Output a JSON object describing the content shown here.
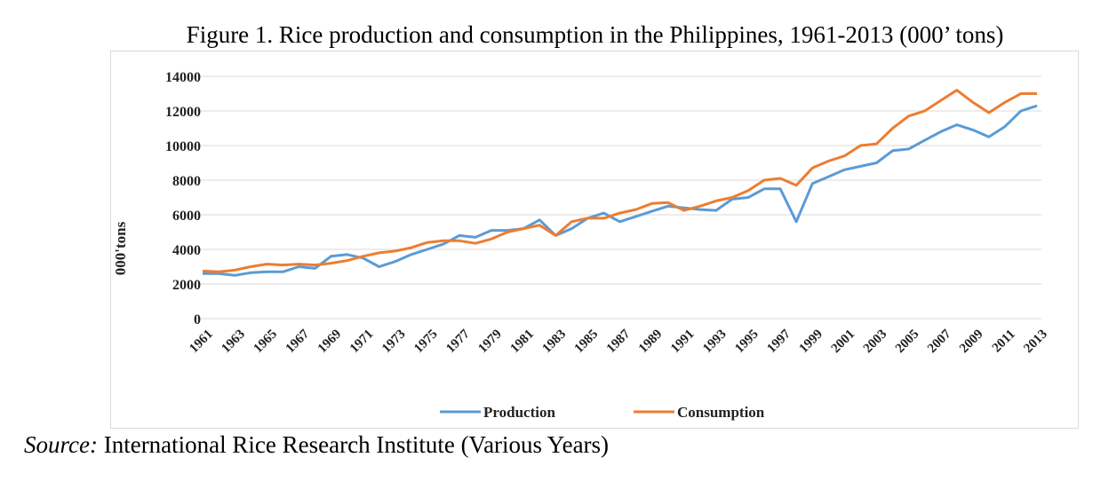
{
  "title": "Figure 1. Rice production and consumption in the Philippines, 1961-2013 (000’ tons)",
  "source": {
    "label": "Source:",
    "text": " International Rice Research Institute (Various Years)"
  },
  "chart_data": {
    "type": "line",
    "title": "Figure 1. Rice production and consumption in the Philippines, 1961-2013 (000’ tons)",
    "ylabel": "000'tons",
    "xlabel": "",
    "ylim": [
      0,
      14000
    ],
    "yticks": [
      0,
      2000,
      4000,
      6000,
      8000,
      10000,
      12000,
      14000
    ],
    "x": [
      1961,
      1962,
      1963,
      1964,
      1965,
      1966,
      1967,
      1968,
      1969,
      1970,
      1971,
      1972,
      1973,
      1974,
      1975,
      1976,
      1977,
      1978,
      1979,
      1980,
      1981,
      1982,
      1983,
      1984,
      1985,
      1986,
      1987,
      1988,
      1989,
      1990,
      1991,
      1992,
      1993,
      1994,
      1995,
      1996,
      1997,
      1998,
      1999,
      2000,
      2001,
      2002,
      2003,
      2004,
      2005,
      2006,
      2007,
      2008,
      2009,
      2010,
      2011,
      2012,
      2013
    ],
    "xtick_labels": [
      "1961",
      "1963",
      "1965",
      "1967",
      "1969",
      "1971",
      "1973",
      "1975",
      "1977",
      "1979",
      "1981",
      "1983",
      "1985",
      "1987",
      "1989",
      "1991",
      "1993",
      "1995",
      "1997",
      "1999",
      "2001",
      "2003",
      "2005",
      "2007",
      "2009",
      "2011",
      "2013"
    ],
    "grid": true,
    "legend_position": "bottom",
    "series": [
      {
        "name": "Production",
        "color": "#5b9bd5",
        "values": [
          2600,
          2600,
          2500,
          2650,
          2700,
          2700,
          3000,
          2900,
          3600,
          3700,
          3500,
          3000,
          3300,
          3700,
          4000,
          4300,
          4800,
          4700,
          5100,
          5100,
          5200,
          5700,
          4800,
          5200,
          5800,
          6100,
          5600,
          5900,
          6200,
          6500,
          6400,
          6300,
          6250,
          6900,
          7000,
          7500,
          7500,
          5600,
          7800,
          8200,
          8600,
          8800,
          9000,
          9700,
          9800,
          10300,
          10800,
          11200,
          10900,
          10500,
          11100,
          12000,
          12300
        ]
      },
      {
        "name": "Consumption",
        "color": "#ed7d31",
        "values": [
          2750,
          2700,
          2800,
          3000,
          3150,
          3100,
          3150,
          3100,
          3200,
          3350,
          3600,
          3800,
          3900,
          4100,
          4400,
          4500,
          4500,
          4350,
          4600,
          5000,
          5200,
          5400,
          4800,
          5600,
          5800,
          5800,
          6100,
          6300,
          6650,
          6700,
          6250,
          6500,
          6800,
          7000,
          7400,
          8000,
          8100,
          7700,
          8700,
          9100,
          9400,
          10000,
          10100,
          11000,
          11700,
          12000,
          12600,
          13200,
          12500,
          11900,
          12500,
          13000,
          13000
        ]
      }
    ]
  }
}
